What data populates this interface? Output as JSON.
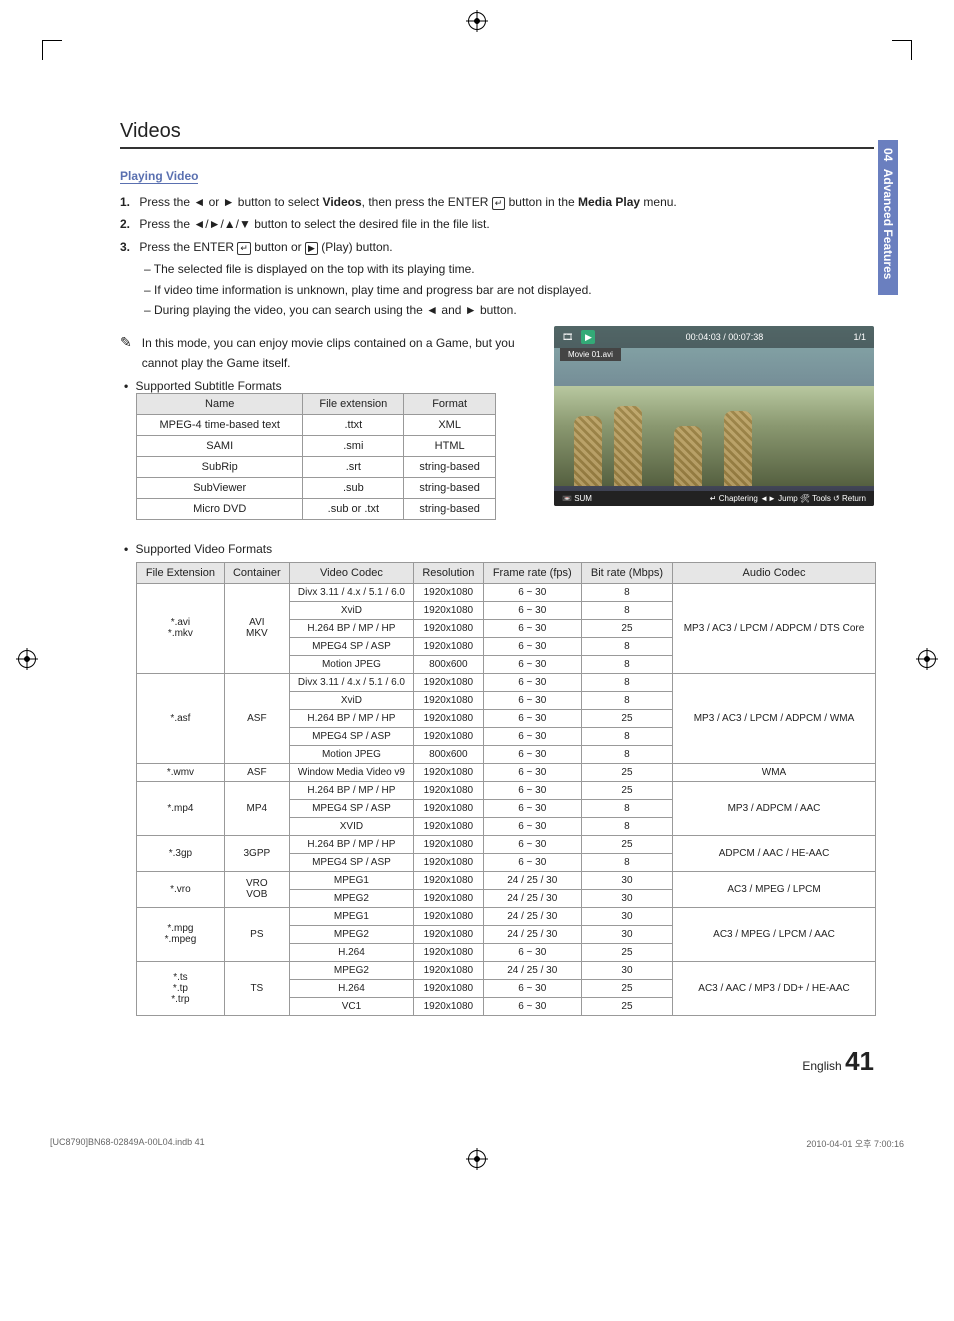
{
  "sideTab": {
    "num": "04",
    "label": "Advanced Features"
  },
  "title": "Videos",
  "subheading": "Playing Video",
  "steps": [
    {
      "n": "1.",
      "pre": "Press the ",
      "keys": "◄ or ►",
      "mid": " button to select ",
      "bold1": "Videos",
      "post1": ", then press the ",
      "enter": "ENTER",
      "post2": " button in the ",
      "bold2": "Media Play",
      "post3": " menu."
    },
    {
      "n": "2.",
      "pre": "Press the ",
      "keys": "◄/►/▲/▼",
      "post": " button to select the desired file in the file list."
    },
    {
      "n": "3.",
      "pre": "Press the ",
      "enter": "ENTER",
      "mid": " button or ",
      "play": "► (Play)",
      "post": " button."
    }
  ],
  "subitems": [
    "The selected file is displayed on the top with its playing time.",
    "If video time information is unknown, play time and progress bar are not displayed.",
    "During playing the video, you can search using the ◄ and ► button."
  ],
  "note": "In this mode, you can enjoy movie clips contained on a Game, but you cannot play the Game itself.",
  "subtitleBullet": "Supported Subtitle Formats",
  "subtitleTable": {
    "headers": [
      "Name",
      "File extension",
      "Format"
    ],
    "rows": [
      [
        "MPEG-4 time-based text",
        ".ttxt",
        "XML"
      ],
      [
        "SAMI",
        ".smi",
        "HTML"
      ],
      [
        "SubRip",
        ".srt",
        "string-based"
      ],
      [
        "SubViewer",
        ".sub",
        "string-based"
      ],
      [
        "Micro DVD",
        ".sub or .txt",
        "string-based"
      ]
    ]
  },
  "preview": {
    "time": "00:04:03 / 00:07:38",
    "counter": "1/1",
    "filename": "Movie 01.avi",
    "sum": "SUM",
    "bottomRight": "↵ Chaptering  ◄► Jump  🛠 Tools  ↺ Return"
  },
  "videoFormatsTitle": "Supported Video Formats",
  "vf": {
    "headers": [
      "File Extension",
      "Container",
      "Video Codec",
      "Resolution",
      "Frame rate (fps)",
      "Bit rate (Mbps)",
      "Audio Codec"
    ],
    "groups": [
      {
        "ext": "*.avi\n*.mkv",
        "container": "AVI\nMKV",
        "rows": [
          [
            "Divx 3.11 / 4.x / 5.1 / 6.0",
            "1920x1080",
            "6 ~ 30",
            "8"
          ],
          [
            "XviD",
            "1920x1080",
            "6 ~ 30",
            "8"
          ],
          [
            "H.264 BP / MP / HP",
            "1920x1080",
            "6 ~ 30",
            "25"
          ],
          [
            "MPEG4 SP / ASP",
            "1920x1080",
            "6 ~ 30",
            "8"
          ],
          [
            "Motion JPEG",
            "800x600",
            "6 ~ 30",
            "8"
          ]
        ],
        "audio": "MP3 / AC3 / LPCM / ADPCM / DTS Core"
      },
      {
        "ext": "*.asf",
        "container": "ASF",
        "rows": [
          [
            "Divx 3.11 / 4.x / 5.1 / 6.0",
            "1920x1080",
            "6 ~ 30",
            "8"
          ],
          [
            "XviD",
            "1920x1080",
            "6 ~ 30",
            "8"
          ],
          [
            "H.264 BP / MP / HP",
            "1920x1080",
            "6 ~ 30",
            "25"
          ],
          [
            "MPEG4 SP / ASP",
            "1920x1080",
            "6 ~ 30",
            "8"
          ],
          [
            "Motion JPEG",
            "800x600",
            "6 ~ 30",
            "8"
          ]
        ],
        "audio": "MP3 / AC3 / LPCM / ADPCM / WMA"
      },
      {
        "ext": "*.wmv",
        "container": "ASF",
        "rows": [
          [
            "Window Media Video v9",
            "1920x1080",
            "6 ~ 30",
            "25"
          ]
        ],
        "audio": "WMA"
      },
      {
        "ext": "*.mp4",
        "container": "MP4",
        "rows": [
          [
            "H.264 BP / MP / HP",
            "1920x1080",
            "6 ~ 30",
            "25"
          ],
          [
            "MPEG4 SP / ASP",
            "1920x1080",
            "6 ~ 30",
            "8"
          ],
          [
            "XVID",
            "1920x1080",
            "6 ~ 30",
            "8"
          ]
        ],
        "audio": "MP3 / ADPCM / AAC"
      },
      {
        "ext": "*.3gp",
        "container": "3GPP",
        "rows": [
          [
            "H.264 BP / MP / HP",
            "1920x1080",
            "6 ~ 30",
            "25"
          ],
          [
            "MPEG4 SP / ASP",
            "1920x1080",
            "6 ~ 30",
            "8"
          ]
        ],
        "audio": "ADPCM / AAC / HE-AAC"
      },
      {
        "ext": "*.vro",
        "container": "VRO\nVOB",
        "rows": [
          [
            "MPEG1",
            "1920x1080",
            "24 / 25 / 30",
            "30"
          ],
          [
            "MPEG2",
            "1920x1080",
            "24 / 25 / 30",
            "30"
          ]
        ],
        "audio": "AC3 / MPEG / LPCM"
      },
      {
        "ext": "*.mpg\n*.mpeg",
        "container": "PS",
        "rows": [
          [
            "MPEG1",
            "1920x1080",
            "24 / 25 / 30",
            "30"
          ],
          [
            "MPEG2",
            "1920x1080",
            "24 / 25 / 30",
            "30"
          ],
          [
            "H.264",
            "1920x1080",
            "6 ~ 30",
            "25"
          ]
        ],
        "audio": "AC3 / MPEG / LPCM / AAC"
      },
      {
        "ext": "*.ts\n*.tp\n*.trp",
        "container": "TS",
        "rows": [
          [
            "MPEG2",
            "1920x1080",
            "24 / 25 / 30",
            "30"
          ],
          [
            "H.264",
            "1920x1080",
            "6 ~ 30",
            "25"
          ],
          [
            "VC1",
            "1920x1080",
            "6 ~ 30",
            "25"
          ]
        ],
        "audio": "AC3 / AAC / MP3 / DD+ / HE-AAC"
      }
    ]
  },
  "pageFooter": {
    "lang": "English",
    "num": "41"
  },
  "bottom": {
    "left": "[UC8790]BN68-02849A-00L04.indb   41",
    "right": "2010-04-01   오후 7:00:16"
  }
}
